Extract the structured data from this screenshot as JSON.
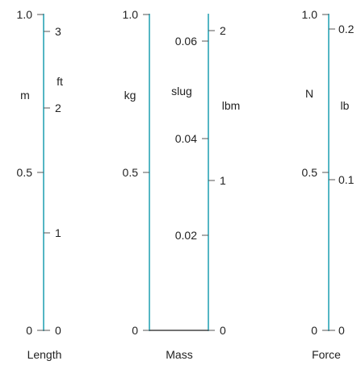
{
  "colors": {
    "scale_line": "#2aa3b5",
    "connector": "#444444",
    "tick": "#555555",
    "text": "#222222"
  },
  "panels": [
    {
      "id": "length",
      "title": "Length",
      "left_unit": "m",
      "left_ticks": [
        {
          "label": "0",
          "value": 0
        },
        {
          "label": "0.5",
          "value": 0.5
        },
        {
          "label": "1.0",
          "value": 1.0
        }
      ],
      "right_scales": [
        {
          "unit": "ft",
          "ticks": [
            {
              "label": "0",
              "ft": 0
            },
            {
              "label": "1",
              "ft": 1
            },
            {
              "label": "2",
              "ft": 2
            },
            {
              "label": "3",
              "ft": 3
            }
          ]
        }
      ]
    },
    {
      "id": "mass",
      "title": "Mass",
      "left_unit": "kg",
      "left_ticks": [
        {
          "label": "0",
          "value": 0
        },
        {
          "label": "0.5",
          "value": 0.5
        },
        {
          "label": "1.0",
          "value": 1.0
        }
      ],
      "middle_scale": {
        "unit": "slug",
        "ticks": [
          {
            "label": "0.02",
            "slug": 0.02
          },
          {
            "label": "0.04",
            "slug": 0.04
          },
          {
            "label": "0.06",
            "slug": 0.06
          }
        ]
      },
      "right_scales": [
        {
          "unit": "lbm",
          "ticks": [
            {
              "label": "0",
              "lbm": 0
            },
            {
              "label": "1",
              "lbm": 1
            },
            {
              "label": "2",
              "lbm": 2
            }
          ]
        }
      ]
    },
    {
      "id": "force",
      "title": "Force",
      "left_unit": "N",
      "left_ticks": [
        {
          "label": "0",
          "value": 0
        },
        {
          "label": "0.5",
          "value": 0.5
        },
        {
          "label": "1.0",
          "value": 1.0
        }
      ],
      "right_scales": [
        {
          "unit": "lb",
          "ticks": [
            {
              "label": "0",
              "lb": 0
            },
            {
              "label": "0.1",
              "lb": 0.1
            },
            {
              "label": "0.2",
              "lb": 0.2
            }
          ]
        }
      ]
    }
  ]
}
